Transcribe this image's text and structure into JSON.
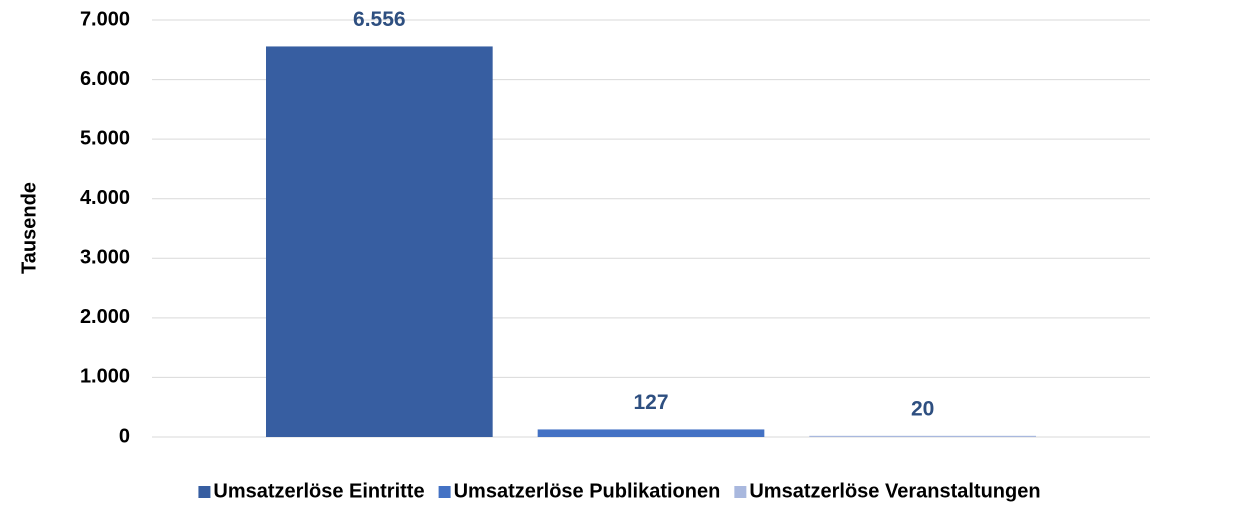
{
  "chart_data": {
    "type": "bar",
    "y_label": "Tausende",
    "categories": [
      null
    ],
    "series": [
      {
        "name": "Umsatzerlöse Eintritte",
        "color": "#375ea1",
        "values": [
          6556
        ],
        "value_labels": [
          "6.556"
        ]
      },
      {
        "name": "Umsatzerlöse Publikationen",
        "color": "#4472c4",
        "values": [
          127
        ]
      },
      {
        "name": "Umsatzerlöse Veranstaltungen",
        "color": "#a9b8de",
        "values": [
          20
        ]
      }
    ],
    "ylim": [
      0,
      7000
    ],
    "yticks": [
      0,
      {
        "value": 1000,
        "label": "1.000"
      },
      {
        "value": 2000,
        "label": "2.000"
      },
      {
        "value": 3000,
        "label": "3.000"
      },
      {
        "value": 4000,
        "label": "4.000"
      },
      {
        "value": 5000,
        "label": "5.000"
      },
      {
        "value": 6000,
        "label": "6.000"
      },
      {
        "value": 7000,
        "label": "7.000"
      }
    ],
    "grid": true,
    "legend": "bottom"
  }
}
